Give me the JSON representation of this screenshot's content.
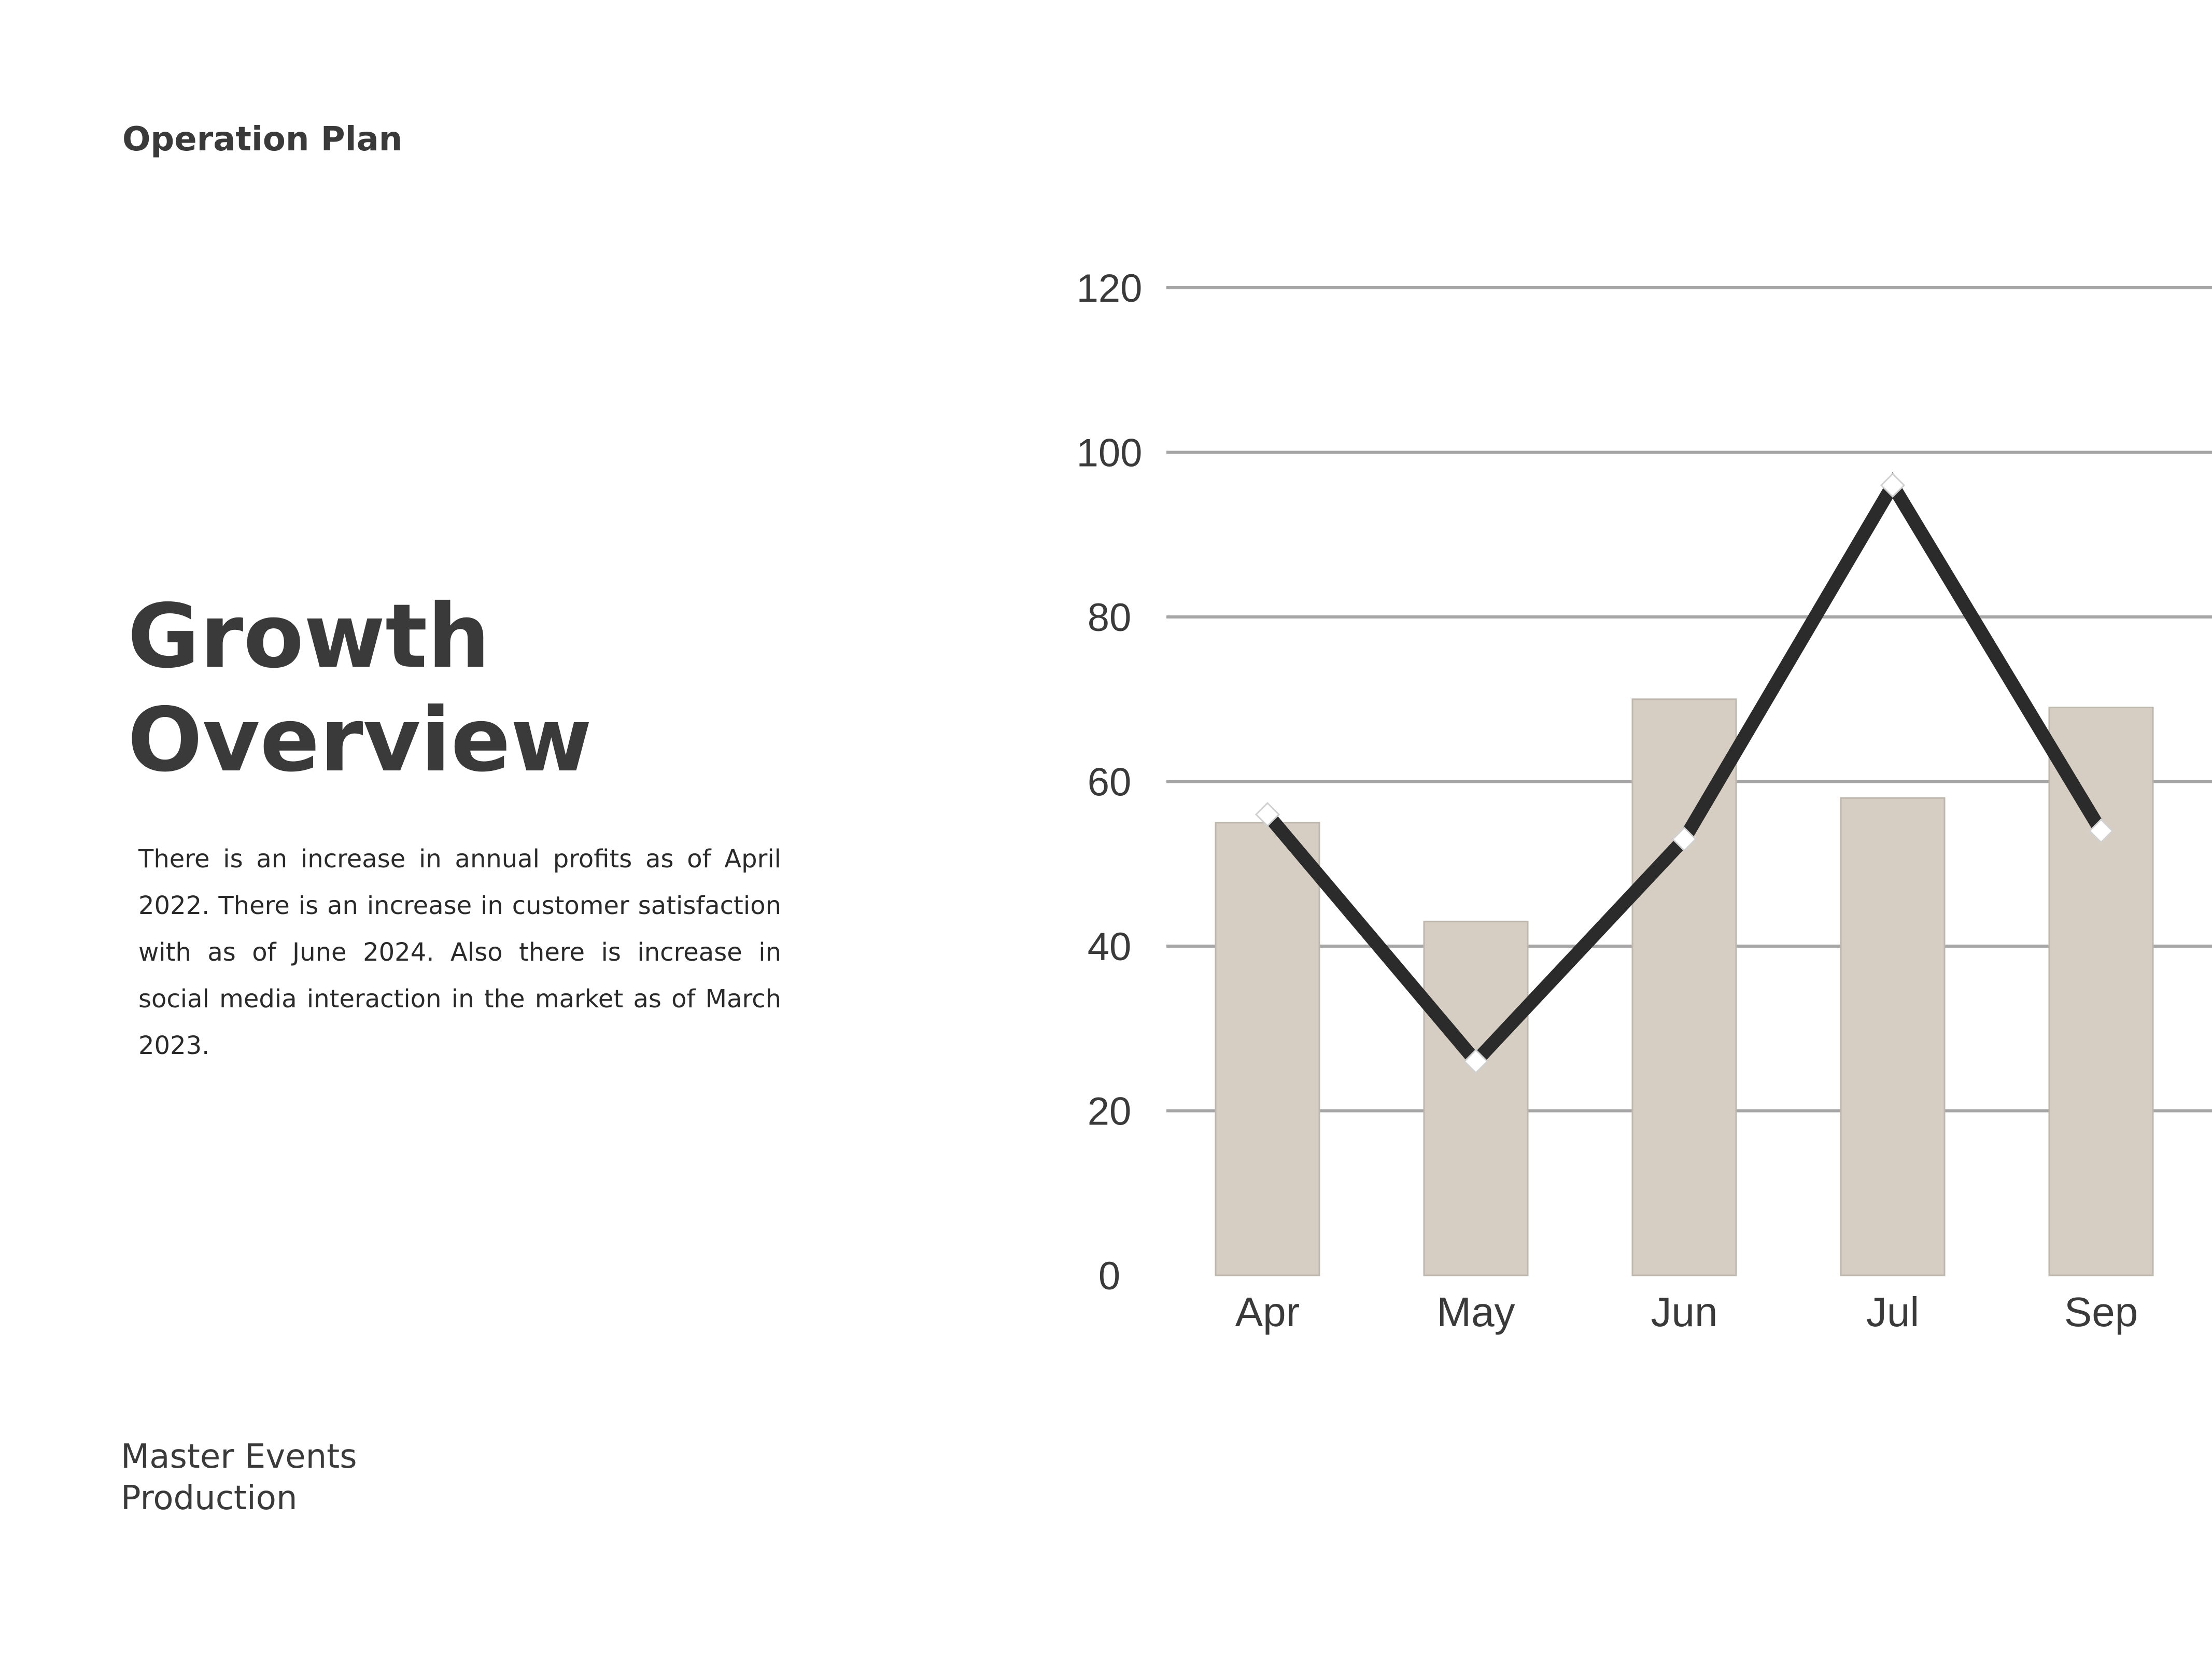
{
  "header": {
    "label": "Operation Plan"
  },
  "title": {
    "line1": "Growth",
    "line2": "Overview"
  },
  "description": "There is an increase in annual profits as of April 2022. There is an increase in customer satisfaction with as of June 2024. Also there is increase in social media interaction in the market as of March 2023.",
  "footer": {
    "line1": "Master Events",
    "line2": "Production"
  },
  "colors": {
    "bar": "#d6cec2",
    "bar_border": "#bdb7ae",
    "line": "#2b2b2b",
    "marker": "#ffffff",
    "grid": "#a6a6a6",
    "text": "#3a3a3a"
  },
  "chart_data": {
    "type": "bar",
    "categories": [
      "Apr",
      "May",
      "Jun",
      "Jul",
      "Sep"
    ],
    "series": [
      {
        "type": "bar",
        "values": [
          55,
          43,
          70,
          58,
          69
        ]
      },
      {
        "type": "line",
        "values": [
          56,
          26,
          53,
          96,
          54
        ]
      }
    ],
    "yticks": [
      0,
      20,
      40,
      60,
      80,
      100,
      120
    ],
    "ylim": [
      0,
      120
    ],
    "grid": true,
    "legend": "none"
  }
}
